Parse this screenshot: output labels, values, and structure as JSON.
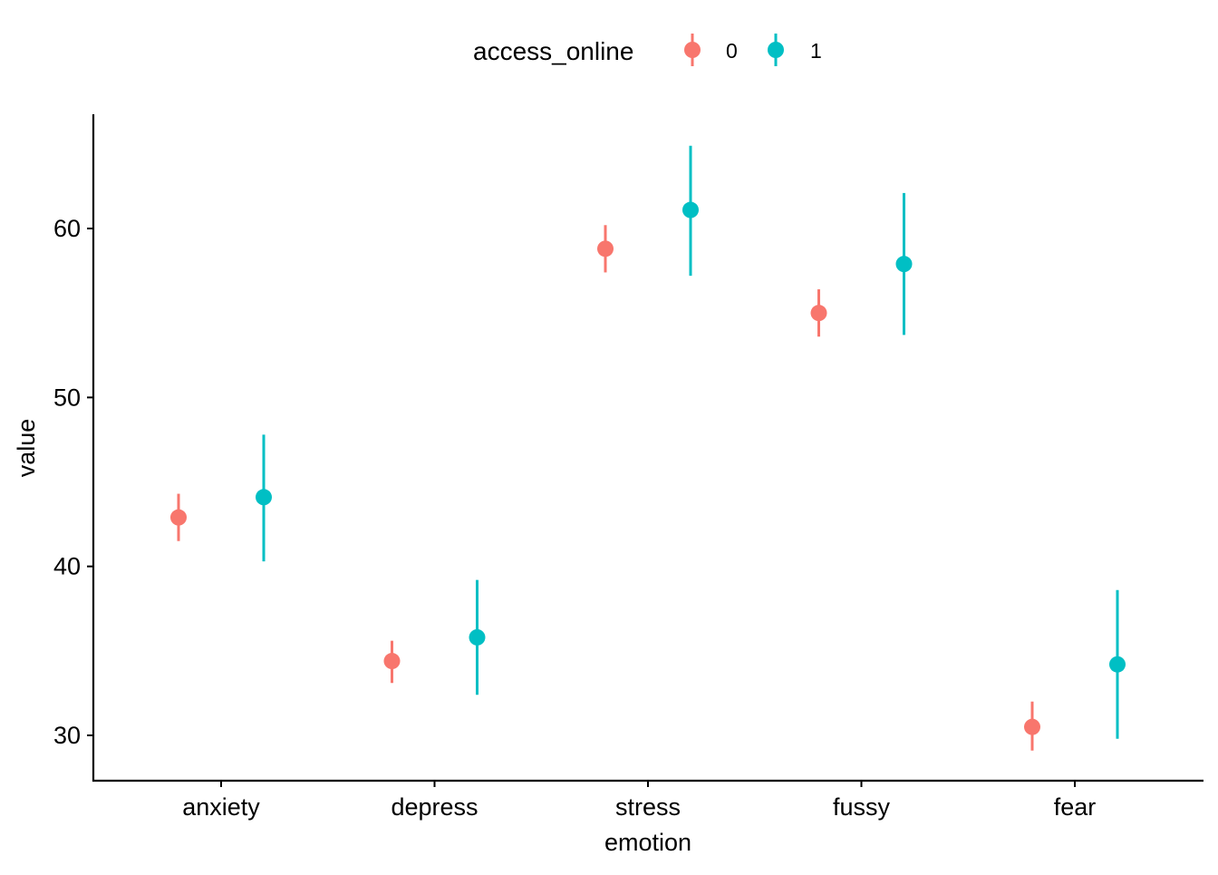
{
  "chart_data": {
    "type": "scatter",
    "subtype": "point-range",
    "title": "",
    "xlabel": "emotion",
    "ylabel": "value",
    "categories": [
      "anxiety",
      "depress",
      "stress",
      "fussy",
      "fear"
    ],
    "y_ticks": [
      30,
      40,
      50,
      60
    ],
    "ylim": [
      27,
      66.7
    ],
    "legend": {
      "title": "access_online",
      "position": "top"
    },
    "series": [
      {
        "name": "0",
        "color": "#F8766D",
        "values": [
          42.9,
          34.4,
          58.8,
          55.0,
          30.5
        ],
        "lower": [
          41.5,
          33.1,
          57.4,
          53.6,
          29.1
        ],
        "upper": [
          44.3,
          35.6,
          60.2,
          56.4,
          32.0
        ]
      },
      {
        "name": "1",
        "color": "#00BFC4",
        "values": [
          44.1,
          35.8,
          61.1,
          57.9,
          34.2
        ],
        "lower": [
          40.3,
          32.4,
          57.2,
          53.7,
          29.8
        ],
        "upper": [
          47.8,
          39.2,
          64.9,
          62.1,
          38.6
        ]
      }
    ]
  }
}
